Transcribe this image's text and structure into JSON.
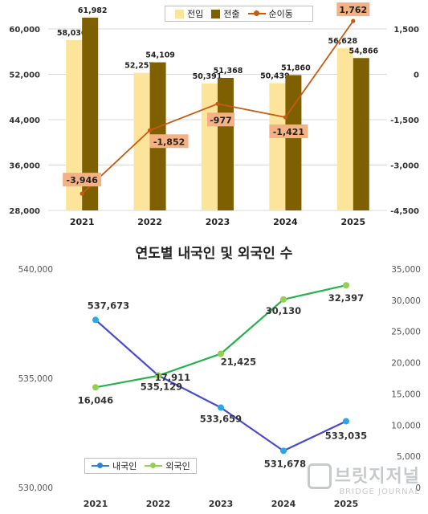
{
  "chart_data": [
    {
      "type": "bar",
      "title": "",
      "categories": [
        "2021",
        "2022",
        "2023",
        "2024",
        "2025"
      ],
      "ylim": [
        28000,
        60000
      ],
      "yticks": [
        "60,000",
        "52,000",
        "44,000",
        "36,000",
        "28,000"
      ],
      "y2lim": [
        -4500,
        1500
      ],
      "y2ticks": [
        "1,500",
        "0",
        "-1,500",
        "-3,000",
        "-4,500"
      ],
      "legend_position": "top",
      "series": [
        {
          "name": "전입",
          "kind": "bar",
          "axis": "left",
          "color": "#fde49b",
          "values": [
            58036,
            52257,
            50391,
            50439,
            56628
          ],
          "labels": [
            "58,036",
            "52,257",
            "50,391",
            "50,439",
            "56,628"
          ]
        },
        {
          "name": "전출",
          "kind": "bar",
          "axis": "left",
          "color": "#7f6000",
          "values": [
            61982,
            54109,
            51368,
            51860,
            54866
          ],
          "labels": [
            "61,982",
            "54,109",
            "51,368",
            "51,860",
            "54,866"
          ]
        },
        {
          "name": "순이동",
          "kind": "line",
          "axis": "right",
          "color": "#c55a11",
          "values": [
            -3946,
            -1852,
            -977,
            -1421,
            1762
          ],
          "labels": [
            "-3,946",
            "-1,852",
            "-977",
            "-1,421",
            "1,762"
          ]
        }
      ]
    },
    {
      "type": "line",
      "title": "연도별 내국인 및 외국인 수",
      "categories": [
        "2021",
        "2022",
        "2023",
        "2024",
        "2025"
      ],
      "ylim": [
        530000,
        540000
      ],
      "yticks": [
        "540,000",
        "535,000",
        "530,000"
      ],
      "y2lim": [
        0,
        35000
      ],
      "y2ticks": [
        "35,000",
        "30,000",
        "25,000",
        "20,000",
        "15,000",
        "10,000",
        "5,000",
        "0"
      ],
      "legend_position": "bottom-left",
      "series": [
        {
          "name": "내국인",
          "axis": "left",
          "color": "#4a4ccf",
          "marker_color": "#2aa7e6",
          "values": [
            537673,
            535129,
            533659,
            531678,
            533035
          ],
          "labels": [
            "537,673",
            "535,129",
            "533,659",
            "531,678",
            "533,035"
          ]
        },
        {
          "name": "외국인",
          "axis": "right",
          "color": "#25b14c",
          "marker_color": "#92d050",
          "values": [
            16046,
            17911,
            21425,
            30130,
            32397
          ],
          "labels": [
            "16,046",
            "17,911",
            "21,425",
            "30,130",
            "32,397"
          ]
        }
      ]
    }
  ],
  "watermark": {
    "main": "브릿지저널",
    "sub": "BRIDGE JOURNAL"
  }
}
